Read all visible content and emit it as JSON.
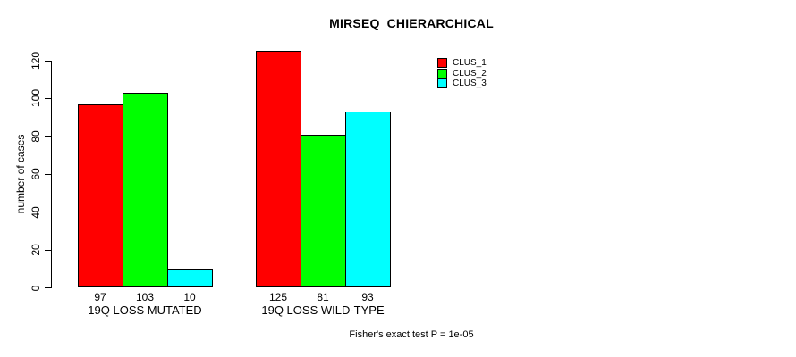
{
  "page": {
    "background": "#FFFFFF",
    "foreground": "#000000"
  },
  "chart_data": {
    "type": "bar",
    "title": "MIRSEQ_CHIERARCHICAL",
    "ylabel": "number of cases",
    "xlabel": "",
    "ylim": [
      0,
      120
    ],
    "yticks": [
      0,
      20,
      40,
      60,
      80,
      100,
      120
    ],
    "grid": false,
    "legend_position": "top-right",
    "categories": [
      "19Q LOSS MUTATED",
      "19Q LOSS WILD-TYPE"
    ],
    "series": [
      {
        "name": "CLUS_1",
        "color": "#FF0000",
        "values": [
          97,
          125
        ]
      },
      {
        "name": "CLUS_2",
        "color": "#00FF00",
        "values": [
          103,
          81
        ]
      },
      {
        "name": "CLUS_3",
        "color": "#00FFFF",
        "values": [
          10,
          93
        ]
      }
    ],
    "bar_value_labels": true,
    "annotation": "Fisher's exact test P = 1e-05"
  }
}
